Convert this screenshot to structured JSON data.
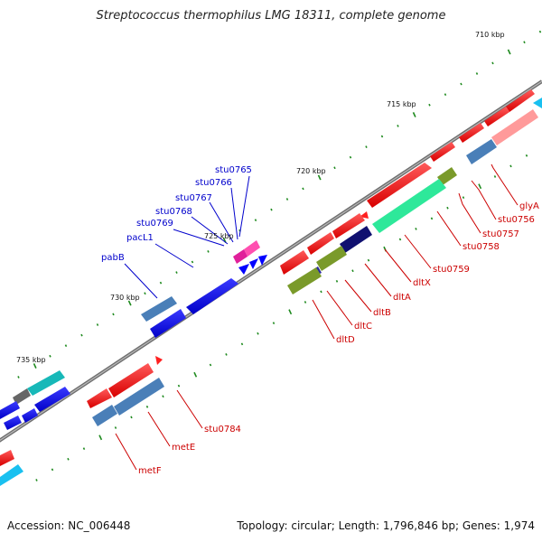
{
  "title": "Streptococcus thermophilus LMG 18311, complete genome",
  "footer": {
    "accession": "Accession: NC_006448",
    "summary": "Topology: circular; Length: 1,796,846 bp; Genes: 1,974"
  },
  "scale_labels": [
    "710 kbp",
    "715 kbp",
    "720 kbp",
    "725 kbp",
    "730 kbp",
    "735 kbp"
  ],
  "gene_labels_top": [
    "stu0765",
    "stu0766",
    "stu0767",
    "stu0768",
    "stu0769",
    "pacL1",
    "pabB"
  ],
  "gene_labels_right": [
    "glyA",
    "stu0756",
    "stu0757",
    "stu0758",
    "stu0759",
    "dltX",
    "dltA",
    "dltB",
    "dltC",
    "dltD"
  ],
  "gene_labels_bottom": [
    "stu0784",
    "metE",
    "metF"
  ],
  "colors": {
    "forward_label": "#0000cc",
    "reverse_label": "#cc0000",
    "backbone": "#7a7a7a",
    "tick": "#1e8a1e"
  }
}
